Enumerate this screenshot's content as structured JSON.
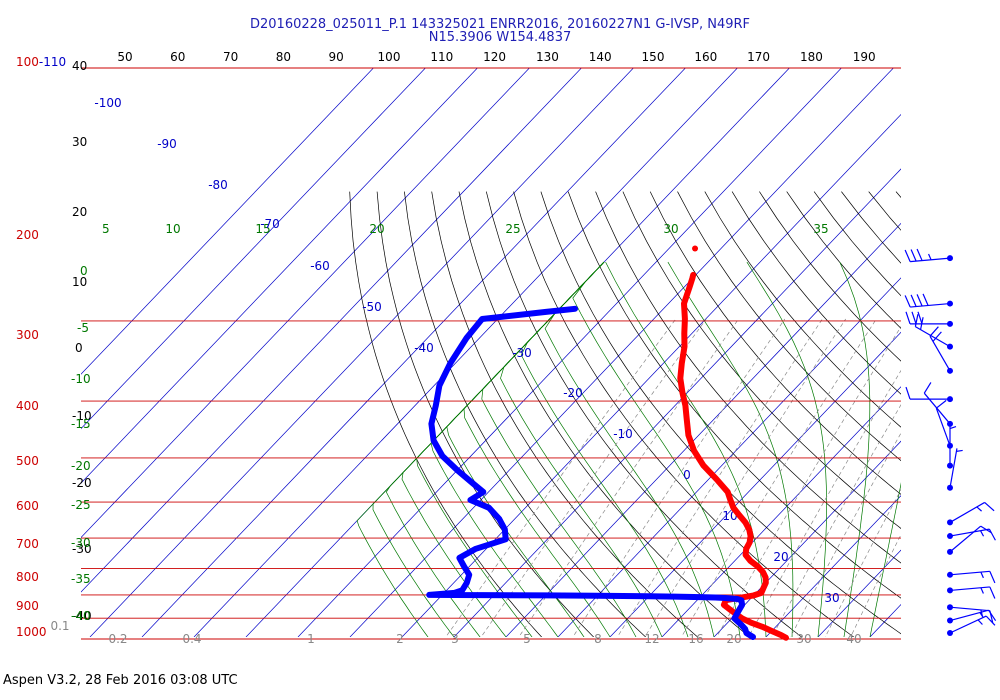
{
  "header": {
    "title_line1": "D20160228_025011_P.1 143325021 ENRR2016, 20160227N1 G-IVSP, N49RF",
    "title_line2": "N15.3906 W154.4837"
  },
  "footer": {
    "text": "Aspen V3.2, 28 Feb 2016  03:08 UTC"
  },
  "chart_data": {
    "type": "skew-t",
    "title": "D20160228_025011_P.1 143325021 ENRR2016, 20160227N1 G-IVSP, N49RF / N15.3906 W154.4837",
    "colors": {
      "temperature": "#ff0000",
      "dewpoint": "#0000ff",
      "isobar": "#cc0000",
      "isotherm": "#0000c8",
      "dry_adiabat": "#000000",
      "moist_adiabat": "#007800",
      "mixing_ratio": "#888888",
      "wind_barb": "#0000ff"
    },
    "pressure_axis": {
      "label_top": "100-110",
      "levels": [
        100,
        200,
        300,
        400,
        500,
        600,
        700,
        800,
        900,
        1000
      ]
    },
    "top_scale_labels": [
      "50",
      "60",
      "70",
      "80",
      "90",
      "100",
      "110",
      "120",
      "130",
      "140",
      "150",
      "160",
      "170",
      "180",
      "190"
    ],
    "left_black_labels": [
      "40",
      "30",
      "20",
      "10",
      "0",
      "-10",
      "-20",
      "-30",
      "-40"
    ],
    "green_labels_left": [
      "5",
      "0",
      "-5",
      "-10",
      "-15",
      "-20",
      "-25",
      "-30",
      "-35",
      "-40"
    ],
    "green_labels_top": [
      "10",
      "15",
      "20",
      "25",
      "30",
      "35"
    ],
    "isotherm_labels": [
      "-100",
      "-90",
      "-80",
      "-70",
      "-60",
      "-50",
      "-40",
      "-30",
      "-20",
      "-10",
      "0",
      "10",
      "20",
      "30"
    ],
    "mixing_ratio_labels": [
      "0.1",
      "0.2",
      "0.4",
      "1",
      "2",
      "3",
      "5",
      "8",
      "12",
      "16",
      "20",
      "30",
      "40"
    ],
    "temperature_profile": [
      {
        "p": 160,
        "t": -60.5
      },
      {
        "p": 163,
        "t": -60.0
      },
      {
        "p": 170,
        "t": -59.0
      },
      {
        "p": 185,
        "t": -57.0
      },
      {
        "p": 200,
        "t": -54.0
      },
      {
        "p": 215,
        "t": -51.5
      },
      {
        "p": 230,
        "t": -49.0
      },
      {
        "p": 250,
        "t": -46.5
      },
      {
        "p": 270,
        "t": -44.0
      },
      {
        "p": 290,
        "t": -41.0
      },
      {
        "p": 310,
        "t": -38.0
      },
      {
        "p": 330,
        "t": -35.5
      },
      {
        "p": 360,
        "t": -32.0
      },
      {
        "p": 390,
        "t": -28.0
      },
      {
        "p": 420,
        "t": -23.5
      },
      {
        "p": 450,
        "t": -18.5
      },
      {
        "p": 480,
        "t": -14.0
      },
      {
        "p": 500,
        "t": -12.0
      },
      {
        "p": 520,
        "t": -10.0
      },
      {
        "p": 540,
        "t": -7.5
      },
      {
        "p": 560,
        "t": -5.0
      },
      {
        "p": 580,
        "t": -3.0
      },
      {
        "p": 600,
        "t": -1.5
      },
      {
        "p": 620,
        "t": -0.5
      },
      {
        "p": 640,
        "t": 0.0
      },
      {
        "p": 660,
        "t": 1.0
      },
      {
        "p": 680,
        "t": 3.0
      },
      {
        "p": 700,
        "t": 5.5
      },
      {
        "p": 720,
        "t": 7.5
      },
      {
        "p": 740,
        "t": 9.0
      },
      {
        "p": 760,
        "t": 10.0
      },
      {
        "p": 780,
        "t": 10.5
      },
      {
        "p": 800,
        "t": 11.0
      },
      {
        "p": 810,
        "t": 10.0
      },
      {
        "p": 830,
        "t": 5.5
      },
      {
        "p": 850,
        "t": 6.0
      },
      {
        "p": 870,
        "t": 8.0
      },
      {
        "p": 890,
        "t": 10.0
      },
      {
        "p": 910,
        "t": 12.0
      },
      {
        "p": 930,
        "t": 14.5
      },
      {
        "p": 950,
        "t": 17.5
      },
      {
        "p": 970,
        "t": 20.0
      },
      {
        "p": 990,
        "t": 22.5
      },
      {
        "p": 1004,
        "t": 24.0
      }
    ],
    "dewpoint_profile": [
      {
        "p": 190,
        "t": -77.0
      },
      {
        "p": 193,
        "t": -82.0
      },
      {
        "p": 200,
        "t": -93.0
      },
      {
        "p": 220,
        "t": -92.5
      },
      {
        "p": 250,
        "t": -91.0
      },
      {
        "p": 280,
        "t": -89.0
      },
      {
        "p": 310,
        "t": -86.0
      },
      {
        "p": 340,
        "t": -83.5
      },
      {
        "p": 370,
        "t": -80.0
      },
      {
        "p": 400,
        "t": -75.5
      },
      {
        "p": 430,
        "t": -70.0
      },
      {
        "p": 460,
        "t": -64.5
      },
      {
        "p": 480,
        "t": -61.0
      },
      {
        "p": 500,
        "t": -62.0
      },
      {
        "p": 520,
        "t": -57.0
      },
      {
        "p": 550,
        "t": -53.0
      },
      {
        "p": 580,
        "t": -50.0
      },
      {
        "p": 610,
        "t": -48.0
      },
      {
        "p": 640,
        "t": -52.0
      },
      {
        "p": 670,
        "t": -53.5
      },
      {
        "p": 700,
        "t": -51.0
      },
      {
        "p": 730,
        "t": -48.5
      },
      {
        "p": 760,
        "t": -47.5
      },
      {
        "p": 790,
        "t": -47.0
      },
      {
        "p": 800,
        "t": -48.0
      },
      {
        "p": 808,
        "t": -52.5
      },
      {
        "p": 810,
        "t": -30.0
      },
      {
        "p": 812,
        "t": -20.0
      },
      {
        "p": 814,
        "t": -10.0
      },
      {
        "p": 815,
        "t": -5.0
      },
      {
        "p": 817,
        "t": 0.0
      },
      {
        "p": 819,
        "t": 3.0
      },
      {
        "p": 821,
        "t": 5.0
      },
      {
        "p": 825,
        "t": 7.5
      },
      {
        "p": 830,
        "t": 8.5
      },
      {
        "p": 850,
        "t": 9.5
      },
      {
        "p": 880,
        "t": 10.0
      },
      {
        "p": 910,
        "t": 10.5
      },
      {
        "p": 940,
        "t": 13.0
      },
      {
        "p": 960,
        "t": 14.5
      },
      {
        "p": 980,
        "t": 15.5
      },
      {
        "p": 1000,
        "t": 17.5
      }
    ],
    "isolated_points": [
      {
        "p": 140,
        "t": -65.0,
        "series": "temperature"
      }
    ],
    "wind_barbs": [
      {
        "p": 147,
        "dir": 265,
        "spd": 35
      },
      {
        "p": 185,
        "dir": 265,
        "spd": 40
      },
      {
        "p": 205,
        "dir": 270,
        "spd": 30
      },
      {
        "p": 230,
        "dir": 300,
        "spd": 20
      },
      {
        "p": 260,
        "dir": 330,
        "spd": 20
      },
      {
        "p": 300,
        "dir": 270,
        "spd": 10
      },
      {
        "p": 340,
        "dir": 320,
        "spd": 10
      },
      {
        "p": 380,
        "dir": 340,
        "spd": 10
      },
      {
        "p": 420,
        "dir": 0,
        "spd": 5
      },
      {
        "p": 470,
        "dir": 10,
        "spd": 5
      },
      {
        "p": 560,
        "dir": 60,
        "spd": 15
      },
      {
        "p": 600,
        "dir": 80,
        "spd": 15
      },
      {
        "p": 650,
        "dir": 50,
        "spd": 10
      },
      {
        "p": 730,
        "dir": 85,
        "spd": 15
      },
      {
        "p": 790,
        "dir": 85,
        "spd": 15
      },
      {
        "p": 860,
        "dir": 95,
        "spd": 15
      },
      {
        "p": 920,
        "dir": 75,
        "spd": 15
      },
      {
        "p": 980,
        "dir": 65,
        "spd": 15
      }
    ]
  }
}
